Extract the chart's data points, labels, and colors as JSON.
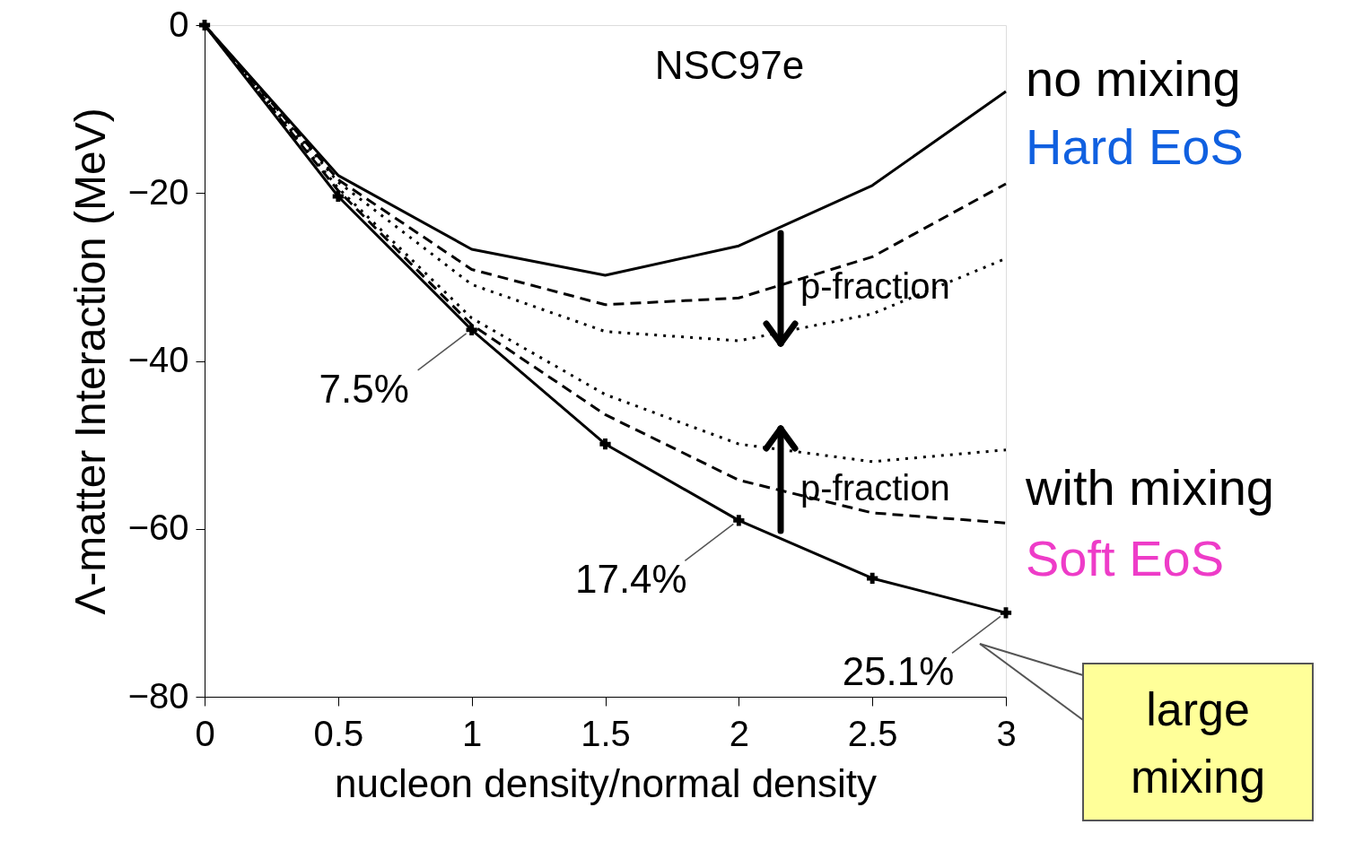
{
  "chart_data": {
    "type": "line",
    "xlabel": "nucleon density/normal density",
    "ylabel": "Λ-matter Interaction (MeV)",
    "x": [
      0,
      0.5,
      1,
      1.5,
      2,
      2.5,
      3
    ],
    "xlim": [
      0,
      3
    ],
    "xticks": [
      0,
      0.5,
      1,
      1.5,
      2,
      2.5,
      3
    ],
    "ylim": [
      -80,
      0
    ],
    "yticks": [
      -80,
      -60,
      -40,
      -20,
      0
    ],
    "grid": false,
    "series": [
      {
        "color": "#000000",
        "line_style": "solid",
        "values": [
          0,
          -17.9,
          -26.7,
          -29.8,
          -26.3,
          -19.1,
          -7.9
        ]
      },
      {
        "color": "#000000",
        "line_style": "dashed",
        "values": [
          0,
          -18.4,
          -29.1,
          -33.3,
          -32.5,
          -27.6,
          -18.9
        ]
      },
      {
        "color": "#000000",
        "line_style": "dotted",
        "values": [
          0,
          -18.7,
          -30.9,
          -36.5,
          -37.6,
          -34.4,
          -27.8
        ]
      },
      {
        "color": "#000000",
        "line_style": "dotted",
        "values": [
          0,
          -19.4,
          -34.9,
          -44.0,
          -49.9,
          -52.0,
          -50.6
        ]
      },
      {
        "color": "#000000",
        "line_style": "dashed",
        "values": [
          0,
          -19.7,
          -35.7,
          -46.4,
          -54.2,
          -58.1,
          -59.3
        ]
      },
      {
        "color": "#000000",
        "line_style": "solid",
        "marker": "cross",
        "values": [
          0,
          -20.4,
          -36.3,
          -49.9,
          -59.0,
          -65.9,
          -70.0
        ]
      }
    ],
    "annotations": [
      "NSC97e",
      "no mixing",
      "Hard EoS",
      "p-fraction",
      "p-fraction",
      "with mixing",
      "Soft EoS",
      "large mixing",
      {
        "text": "7.5%",
        "x": 1,
        "y": -36.3
      },
      {
        "text": "17.4%",
        "x": 2,
        "y": -59.0
      },
      {
        "text": "25.1%",
        "x": 3,
        "y": -70.0
      }
    ]
  }
}
